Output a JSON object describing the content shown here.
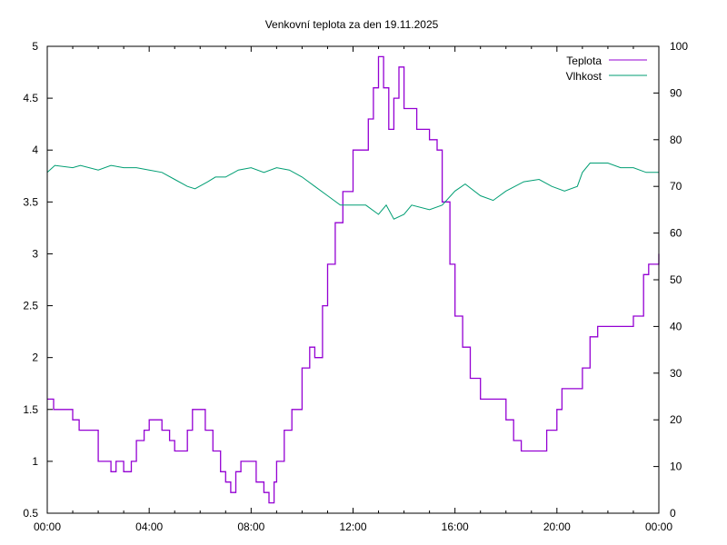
{
  "chart_data": {
    "type": "line",
    "title": "Venkovní teplota za den 19.11.2025",
    "xlabel": "",
    "ylabel": "",
    "y2label": "",
    "xlim": [
      0,
      24
    ],
    "ylim": [
      0.5,
      5
    ],
    "y2lim": [
      0,
      100
    ],
    "grid": false,
    "legend": "top-right",
    "x_ticks": [
      0,
      4,
      8,
      12,
      16,
      20,
      24
    ],
    "x_tick_labels": [
      "00:00",
      "04:00",
      "08:00",
      "12:00",
      "16:00",
      "20:00",
      "00:00"
    ],
    "y_ticks": [
      0.5,
      1,
      1.5,
      2,
      2.5,
      3,
      3.5,
      4,
      4.5,
      5
    ],
    "y_tick_labels": [
      "0.5",
      "1",
      "1.5",
      "2",
      "2.5",
      "3",
      "3.5",
      "4",
      "4.5",
      "5"
    ],
    "y2_ticks": [
      0,
      10,
      20,
      30,
      40,
      50,
      60,
      70,
      80,
      90,
      100
    ],
    "y2_tick_labels": [
      "0",
      "10",
      "20",
      "30",
      "40",
      "50",
      "60",
      "70",
      "80",
      "90",
      "100"
    ],
    "series": [
      {
        "name": "Teplota",
        "axis": "y1",
        "color": "#9400d3",
        "x": [
          0,
          0.25,
          0.5,
          1.0,
          1.25,
          1.5,
          2.0,
          2.5,
          2.7,
          3.0,
          3.3,
          3.5,
          3.8,
          4.0,
          4.3,
          4.5,
          4.8,
          5.0,
          5.3,
          5.5,
          5.7,
          6.0,
          6.2,
          6.5,
          6.8,
          7.0,
          7.2,
          7.4,
          7.6,
          8.0,
          8.2,
          8.5,
          8.7,
          8.9,
          9.0,
          9.3,
          9.6,
          10.0,
          10.3,
          10.5,
          10.8,
          11.0,
          11.3,
          11.6,
          12.0,
          12.4,
          12.6,
          12.8,
          13.0,
          13.2,
          13.4,
          13.6,
          13.8,
          14.0,
          14.2,
          14.5,
          14.8,
          15.0,
          15.3,
          15.5,
          15.8,
          16.0,
          16.3,
          16.6,
          17.0,
          17.5,
          18.0,
          18.3,
          18.6,
          19.0,
          19.3,
          19.6,
          20.0,
          20.2,
          20.5,
          21.0,
          21.3,
          21.6,
          22.0,
          22.5,
          23.0,
          23.4,
          23.6,
          24.0
        ],
        "values": [
          1.6,
          1.5,
          1.5,
          1.4,
          1.3,
          1.3,
          1.0,
          0.9,
          1.0,
          0.9,
          1.0,
          1.2,
          1.3,
          1.4,
          1.4,
          1.3,
          1.2,
          1.1,
          1.1,
          1.3,
          1.5,
          1.5,
          1.3,
          1.1,
          0.9,
          0.8,
          0.7,
          0.9,
          1.0,
          1.0,
          0.8,
          0.7,
          0.6,
          0.8,
          1.0,
          1.3,
          1.5,
          1.9,
          2.1,
          2.0,
          2.5,
          2.9,
          3.3,
          3.6,
          4.0,
          4.0,
          4.3,
          4.6,
          4.9,
          4.6,
          4.2,
          4.5,
          4.8,
          4.4,
          4.4,
          4.2,
          4.2,
          4.1,
          4.0,
          3.5,
          2.9,
          2.4,
          2.1,
          1.8,
          1.6,
          1.6,
          1.4,
          1.2,
          1.1,
          1.1,
          1.1,
          1.3,
          1.5,
          1.7,
          1.7,
          1.9,
          2.2,
          2.3,
          2.3,
          2.3,
          2.4,
          2.8,
          2.9,
          3.0
        ]
      },
      {
        "name": "Vlhkost",
        "axis": "y2",
        "color": "#009e73",
        "x": [
          0,
          0.3,
          1.0,
          1.3,
          2.0,
          2.5,
          3.0,
          3.5,
          4.0,
          4.5,
          5.0,
          5.5,
          5.8,
          6.3,
          6.6,
          7.0,
          7.5,
          8.0,
          8.5,
          9.0,
          9.5,
          10.0,
          10.5,
          11.0,
          11.5,
          12.0,
          12.5,
          13.0,
          13.3,
          13.6,
          14.0,
          14.3,
          15.0,
          15.5,
          16.0,
          16.4,
          17.0,
          17.5,
          18.0,
          18.7,
          19.3,
          19.8,
          20.3,
          20.8,
          21.0,
          21.3,
          22.0,
          22.5,
          23.0,
          23.5,
          24.0
        ],
        "values": [
          73,
          74.5,
          74,
          74.5,
          73.5,
          74.5,
          74,
          74,
          73.5,
          73,
          71.5,
          70,
          69.5,
          71,
          72,
          72,
          73.5,
          74,
          73,
          74,
          73.5,
          72,
          70,
          68,
          66,
          66,
          66,
          64,
          66,
          63,
          64,
          66,
          65,
          66,
          69,
          70.5,
          68,
          67,
          69,
          71,
          71.5,
          70,
          69,
          70,
          73,
          75,
          75,
          74,
          74,
          73,
          73
        ]
      }
    ]
  }
}
